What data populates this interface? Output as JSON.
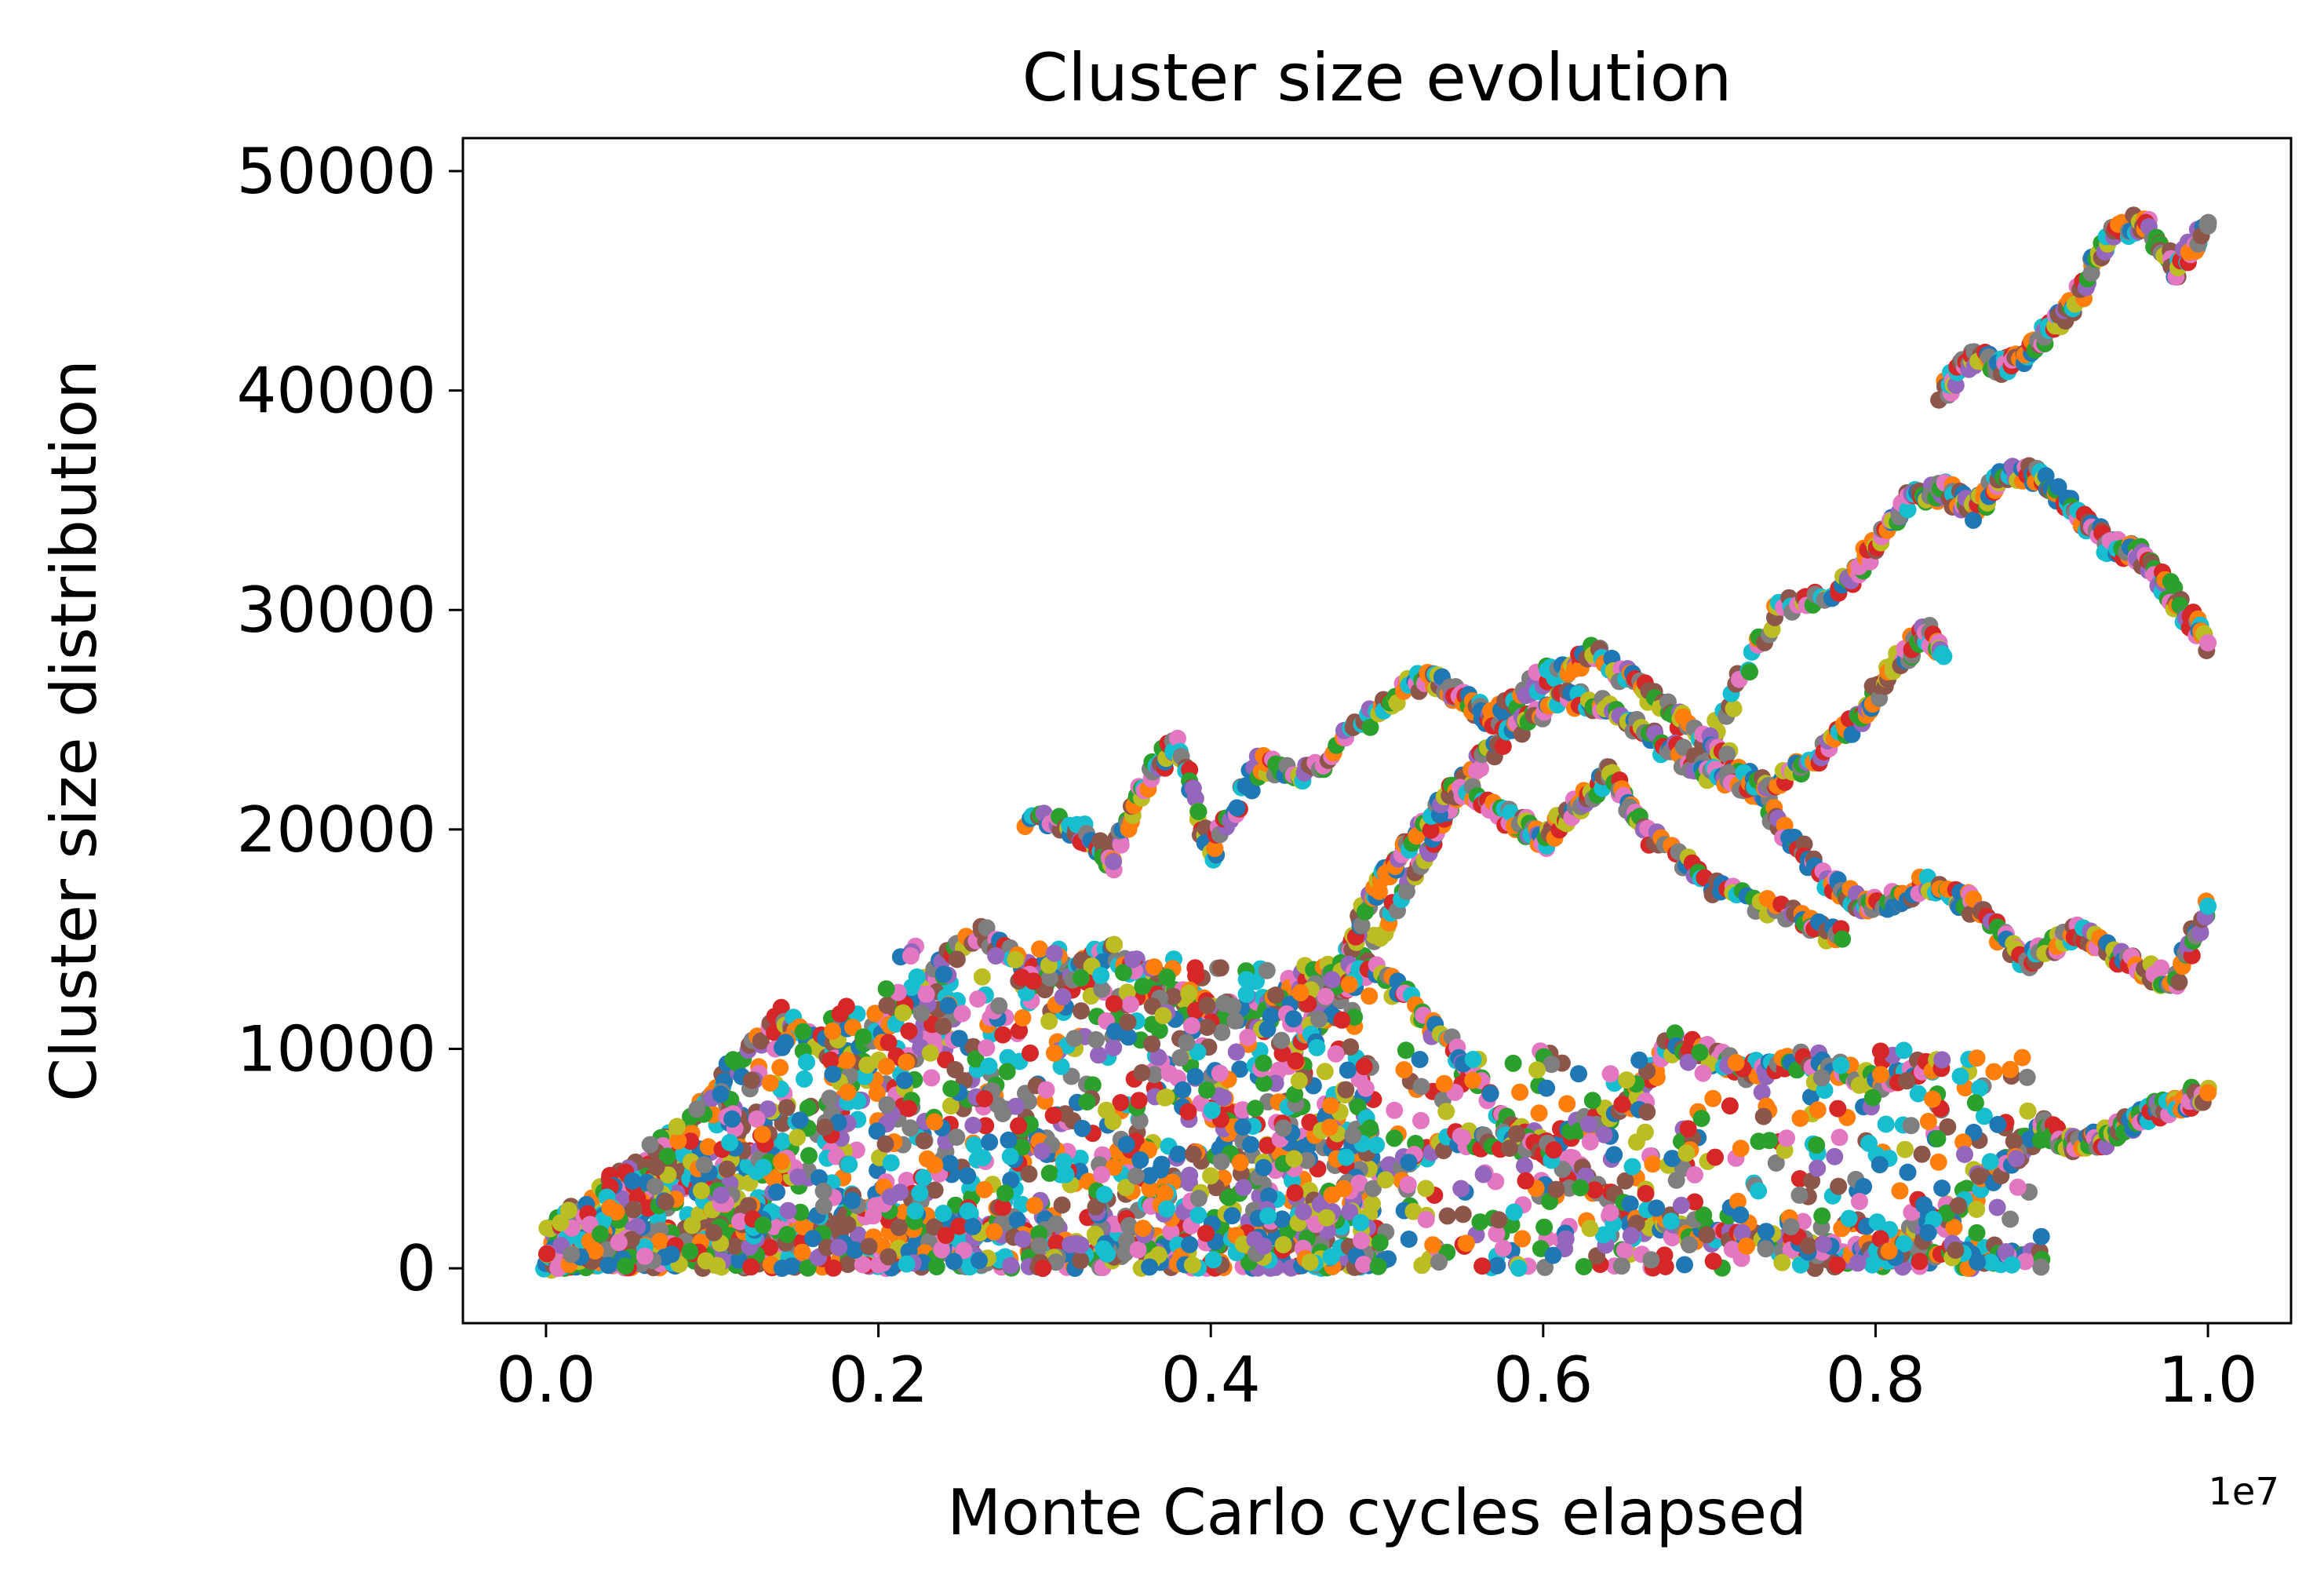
{
  "chart_data": {
    "type": "scatter",
    "title": "Cluster size evolution",
    "xlabel": "Monte Carlo cycles elapsed",
    "ylabel": "Cluster size distribution",
    "x_offset_label": "1e7",
    "xlim": [
      -0.05,
      1.05
    ],
    "ylim": [
      -2500,
      51500
    ],
    "x_ticks": [
      0.0,
      0.2,
      0.4,
      0.6,
      0.8,
      1.0
    ],
    "x_tick_labels": [
      "0.0",
      "0.2",
      "0.4",
      "0.6",
      "0.8",
      "1.0"
    ],
    "y_ticks": [
      0,
      10000,
      20000,
      30000,
      40000,
      50000
    ],
    "y_tick_labels": [
      "0",
      "10000",
      "20000",
      "30000",
      "40000",
      "50000"
    ],
    "grid": false,
    "legend": "none",
    "palette": [
      "#1f77b4",
      "#ff7f0e",
      "#2ca02c",
      "#d62728",
      "#9467bd",
      "#8c564b",
      "#e377c2",
      "#7f7f7f",
      "#bcbd22",
      "#17becf"
    ],
    "trajectories": [
      {
        "x": [
          0.84,
          0.86,
          0.88,
          0.9,
          0.92,
          0.94,
          0.96,
          0.98,
          1.0
        ],
        "y": [
          40000,
          41500,
          41000,
          42500,
          44000,
          47000,
          47800,
          45500,
          47500
        ]
      },
      {
        "x": [
          0.7,
          0.74,
          0.78,
          0.8,
          0.82,
          0.84,
          0.86,
          0.88,
          0.9,
          0.92,
          0.94,
          0.96,
          0.98,
          1.0
        ],
        "y": [
          24000,
          30000,
          31000,
          33000,
          35000,
          35500,
          34500,
          36500,
          36000,
          34500,
          33000,
          32500,
          30500,
          28500
        ]
      },
      {
        "x": [
          0.29,
          0.32,
          0.34,
          0.36,
          0.38,
          0.4,
          0.43,
          0.46,
          0.5,
          0.53,
          0.55,
          0.57,
          0.6,
          0.63,
          0.66,
          0.69,
          0.72,
          0.75,
          0.78,
          0.8,
          0.83,
          0.86,
          0.89,
          0.92,
          0.95,
          0.98,
          1.0
        ],
        "y": [
          20500,
          20000,
          18500,
          22000,
          24000,
          19000,
          23000,
          22500,
          25500,
          27000,
          26000,
          25000,
          27000,
          28000,
          26500,
          24500,
          22500,
          19500,
          17000,
          16500,
          17500,
          16500,
          14000,
          15500,
          14000,
          13000,
          16500
        ]
      },
      {
        "x": [
          0.46,
          0.5,
          0.53,
          0.55,
          0.58,
          0.61,
          0.64,
          0.67,
          0.7,
          0.73,
          0.76,
          0.79,
          0.81,
          0.83,
          0.84
        ],
        "y": [
          10000,
          15000,
          19000,
          22000,
          24500,
          26000,
          25500,
          24000,
          22500,
          22000,
          23000,
          25000,
          27500,
          29000,
          28000
        ]
      },
      {
        "x": [
          0.45,
          0.48,
          0.5,
          0.52,
          0.55,
          0.58,
          0.6,
          0.62,
          0.64,
          0.66,
          0.7,
          0.75,
          0.78
        ],
        "y": [
          9500,
          14000,
          17500,
          19500,
          22000,
          20500,
          19500,
          21000,
          22500,
          20000,
          17500,
          16000,
          15000
        ]
      },
      {
        "x": [
          0.0,
          0.05,
          0.1,
          0.14,
          0.18,
          0.22,
          0.26,
          0.3,
          0.34,
          0.38,
          0.42,
          0.46,
          0.5,
          0.54,
          0.58,
          0.62,
          0.66,
          0.7,
          0.75,
          0.8,
          0.85,
          0.9
        ],
        "y": [
          0,
          3500,
          8000,
          11500,
          9500,
          12500,
          15500,
          13000,
          14500,
          12500,
          11500,
          13500,
          13500,
          10500,
          6500,
          4500,
          2000,
          1500,
          1000,
          500,
          800,
          400
        ]
      },
      {
        "x": [
          0.5,
          0.55,
          0.6,
          0.65,
          0.68,
          0.72,
          0.76,
          0.8,
          0.84
        ],
        "y": [
          4000,
          6000,
          5500,
          7500,
          10500,
          9000,
          9500,
          8500,
          9500
        ]
      },
      {
        "x": [
          0.78,
          0.82,
          0.86,
          0.9,
          0.92,
          0.94,
          0.96,
          0.98,
          1.0
        ],
        "y": [
          500,
          1500,
          3500,
          6500,
          5500,
          6000,
          7000,
          7500,
          8000
        ]
      },
      {
        "x": [
          0.0,
          0.04,
          0.08,
          0.12,
          0.16,
          0.2,
          0.24,
          0.28,
          0.32,
          0.36,
          0.38
        ],
        "y": [
          0,
          1000,
          500,
          2500,
          1500,
          3000,
          1000,
          2000,
          500,
          1500,
          200
        ]
      }
    ]
  }
}
